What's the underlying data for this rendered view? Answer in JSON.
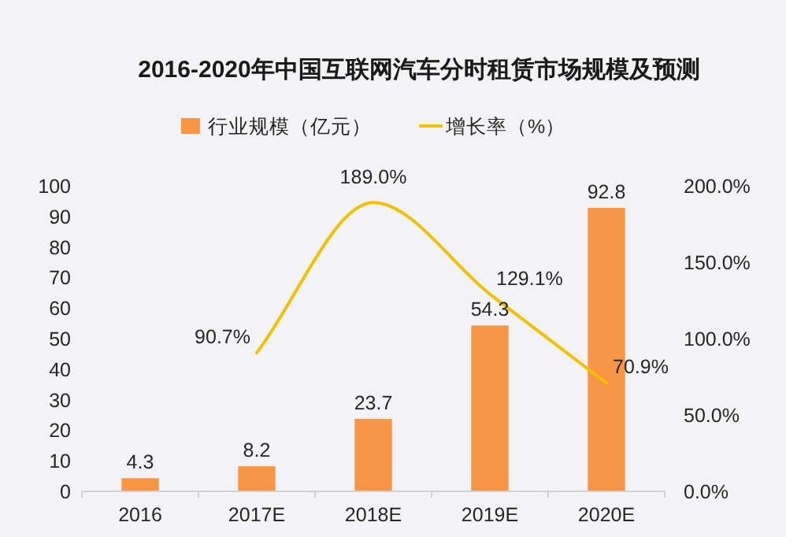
{
  "chart_data": {
    "type": "bar",
    "title": "2016-2020年中国互联网汽车分时租赁市场规模及预测",
    "categories": [
      "2016",
      "2017E",
      "2018E",
      "2019E",
      "2020E"
    ],
    "series": [
      {
        "name": "行业规模（亿元）",
        "color": "#f79646",
        "values": [
          4.3,
          8.2,
          23.7,
          54.3,
          92.8
        ],
        "value_labels": [
          "4.3",
          "8.2",
          "23.7",
          "54.3",
          "92.8"
        ]
      },
      {
        "name": "增长率（%）",
        "type": "line",
        "axis": "y2",
        "color": "#f2c200",
        "values": [
          null,
          90.7,
          189.0,
          129.1,
          70.9
        ],
        "value_labels": [
          null,
          "90.7%",
          "189.0%",
          "129.1%",
          "70.9%"
        ]
      }
    ],
    "ylim": [
      0,
      100
    ],
    "yticks": [
      0,
      10,
      20,
      30,
      40,
      50,
      60,
      70,
      80,
      90,
      100
    ],
    "y2lim": [
      0,
      200
    ],
    "y2ticks": [
      {
        "value": 0,
        "label": "0.0%"
      },
      {
        "value": 50,
        "label": "50.0%"
      },
      {
        "value": 100,
        "label": "100.0%"
      },
      {
        "value": 150,
        "label": "150.0%"
      },
      {
        "value": 200,
        "label": "200.0%"
      }
    ],
    "legend": "top"
  }
}
